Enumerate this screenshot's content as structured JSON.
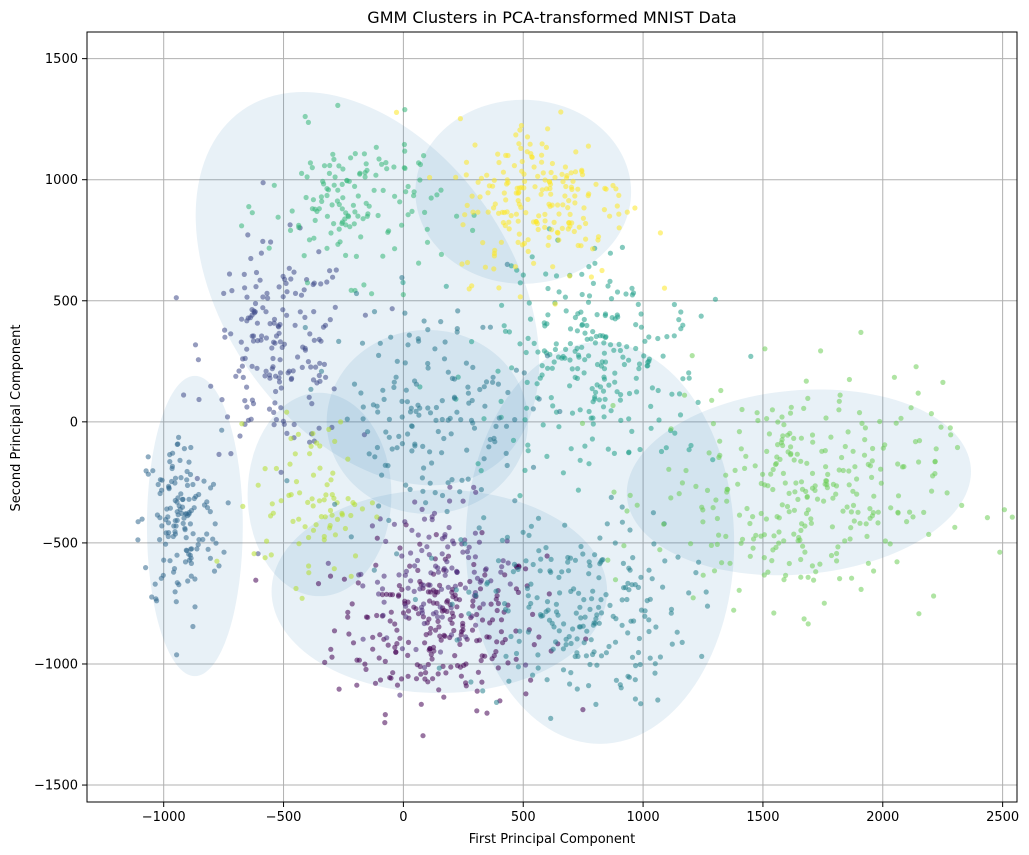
{
  "chart_data": {
    "type": "scatter",
    "title": "GMM Clusters in PCA-transformed MNIST Data",
    "xlabel": "First Principal Component",
    "ylabel": "Second Principal Component",
    "xlim": [
      -1320,
      2560
    ],
    "ylim": [
      -1570,
      1610
    ],
    "xticks": [
      -1000,
      -500,
      0,
      500,
      1000,
      1500,
      2000,
      2500
    ],
    "yticks": [
      -1500,
      -1000,
      -500,
      0,
      500,
      1000,
      1500
    ],
    "xtick_labels": [
      "−1000",
      "−500",
      "0",
      "500",
      "1000",
      "1500",
      "2000",
      "2500"
    ],
    "ytick_labels": [
      "−1500",
      "−1000",
      "−500",
      "0",
      "500",
      "1000",
      "1500"
    ],
    "grid": true,
    "colormap": "viridis",
    "clusters": [
      {
        "id": 0,
        "color": "#440154",
        "mean": [
          150,
          -850
        ],
        "spread": [
          220,
          170
        ],
        "n": 240,
        "angle": 0
      },
      {
        "id": 1,
        "color": "#482878",
        "mean": [
          150,
          -620
        ],
        "spread": [
          160,
          150
        ],
        "n": 120,
        "angle": 0
      },
      {
        "id": 2,
        "color": "#3e4989",
        "mean": [
          -520,
          300
        ],
        "spread": [
          150,
          210
        ],
        "n": 180,
        "angle": 0
      },
      {
        "id": 3,
        "color": "#31688e",
        "mean": [
          -930,
          -420
        ],
        "spread": [
          85,
          190
        ],
        "n": 140,
        "angle": 0
      },
      {
        "id": 4,
        "color": "#26828e",
        "mean": [
          720,
          -780
        ],
        "spread": [
          230,
          200
        ],
        "n": 220,
        "angle": 0
      },
      {
        "id": 5,
        "color": "#1f9e89",
        "mean": [
          800,
          250
        ],
        "spread": [
          230,
          200
        ],
        "n": 240,
        "angle": -20
      },
      {
        "id": 6,
        "color": "#35b779",
        "mean": [
          -200,
          900
        ],
        "spread": [
          180,
          150
        ],
        "n": 140,
        "angle": 0
      },
      {
        "id": 7,
        "color": "#6ece58",
        "mean": [
          1650,
          -300
        ],
        "spread": [
          300,
          230
        ],
        "n": 300,
        "angle": 0
      },
      {
        "id": 8,
        "color": "#b5de2b",
        "mean": [
          -380,
          -320
        ],
        "spread": [
          120,
          170
        ],
        "n": 80,
        "angle": 0
      },
      {
        "id": 9,
        "color": "#fde725",
        "mean": [
          580,
          920
        ],
        "spread": [
          180,
          170
        ],
        "n": 200,
        "angle": 0
      },
      {
        "id": 10,
        "color": "#2a788e",
        "mean": [
          100,
          50
        ],
        "spread": [
          210,
          220
        ],
        "n": 160,
        "angle": 0
      }
    ],
    "ellipses": [
      {
        "cx": -150,
        "cy": 550,
        "rx": 600,
        "ry": 900,
        "angle": -35
      },
      {
        "cx": 150,
        "cy": -700,
        "rx": 700,
        "ry": 420,
        "angle": 0
      },
      {
        "cx": -870,
        "cy": -430,
        "rx": 200,
        "ry": 620,
        "angle": 0
      },
      {
        "cx": 820,
        "cy": -500,
        "rx": 560,
        "ry": 830,
        "angle": 0
      },
      {
        "cx": 1650,
        "cy": -250,
        "rx": 720,
        "ry": 380,
        "angle": -5
      },
      {
        "cx": 500,
        "cy": 950,
        "rx": 450,
        "ry": 380,
        "angle": 0
      },
      {
        "cx": 100,
        "cy": 0,
        "rx": 420,
        "ry": 380,
        "angle": 0
      },
      {
        "cx": -350,
        "cy": -300,
        "rx": 300,
        "ry": 420,
        "angle": 0
      }
    ]
  }
}
